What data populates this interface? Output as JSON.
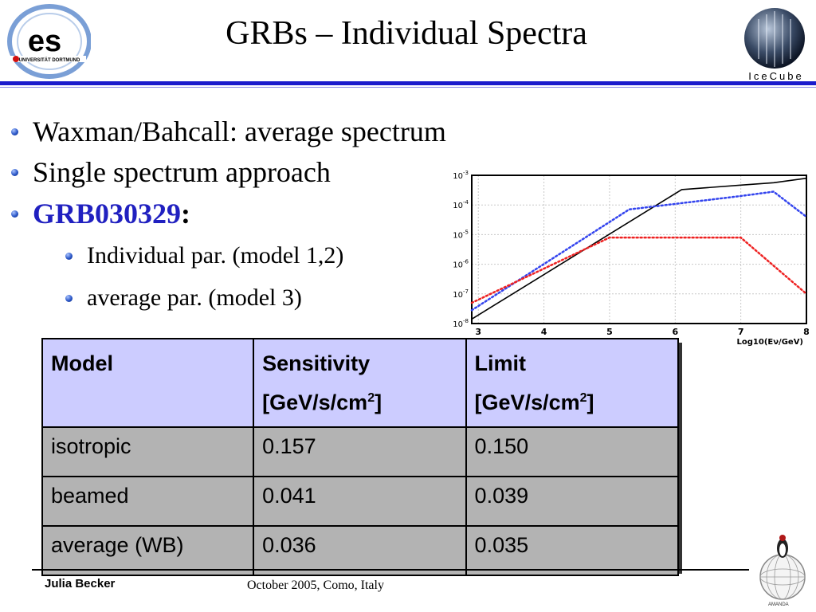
{
  "header": {
    "title": "GRBs – Individual Spectra",
    "logo_left_text": "es",
    "logo_left_sub": "UNIVERSITÄT DORTMUND",
    "logo_right_text": "IceCube"
  },
  "bullets": [
    {
      "text": "Waxman/Bahcall: average spectrum"
    },
    {
      "text": "Single spectrum approach"
    },
    {
      "text": "GRB030329",
      "suffix": ":"
    }
  ],
  "sub_bullets": [
    {
      "text": "Individual par. (model 1,2)"
    },
    {
      "text": "average par. (model 3)"
    }
  ],
  "chart_data": {
    "type": "line",
    "xlabel": "Log10(Eν/GeV)",
    "ylabel": "",
    "xlim": [
      2.9,
      8
    ],
    "ylim_log10": [
      -8,
      -3
    ],
    "y_scale": "log",
    "x_ticks": [
      "3",
      "4",
      "5",
      "6",
      "7",
      "8"
    ],
    "y_ticks": [
      "10-8",
      "10-7",
      "10-6",
      "10-5",
      "10-4",
      "10-3"
    ],
    "grid": true,
    "series": [
      {
        "color": "#000000",
        "style": "solid",
        "x": [
          2.9,
          6.1,
          7.0,
          7.5,
          8.0
        ],
        "log10_y": [
          -7.85,
          -3.48,
          -3.33,
          -3.25,
          -3.1
        ]
      },
      {
        "color": "#3344ee",
        "style": "dotted",
        "x": [
          2.9,
          5.3,
          7.0,
          7.5,
          8.0
        ],
        "log10_y": [
          -7.55,
          -4.15,
          -3.7,
          -3.55,
          -4.4
        ]
      },
      {
        "color": "#ee2222",
        "style": "dotted",
        "x": [
          2.9,
          5.0,
          7.0,
          8.0
        ],
        "log10_y": [
          -7.3,
          -5.1,
          -5.1,
          -7.0
        ]
      }
    ]
  },
  "table": {
    "headers": [
      {
        "line1": "Model",
        "line2": ""
      },
      {
        "line1": "Sensitivity",
        "line2": "[GeV/s/cm",
        "sup": "2",
        "close": "]"
      },
      {
        "line1": "Limit",
        "line2": "[GeV/s/cm",
        "sup": "2",
        "close": "]"
      }
    ],
    "rows": [
      [
        "isotropic",
        "0.157",
        "0.150"
      ],
      [
        "beamed",
        "0.041",
        "0.039"
      ],
      [
        "average (WB)",
        "0.036",
        "0.035"
      ]
    ]
  },
  "footer": {
    "author": "Julia Becker",
    "date": "October 2005, Como, Italy",
    "amanda_text": "AMANDA"
  },
  "colors": {
    "header_rule": "#1a1acc",
    "header_bg_table": "#ccccff",
    "cell_bg": "#b3b3b3",
    "link": "#2020c0"
  }
}
